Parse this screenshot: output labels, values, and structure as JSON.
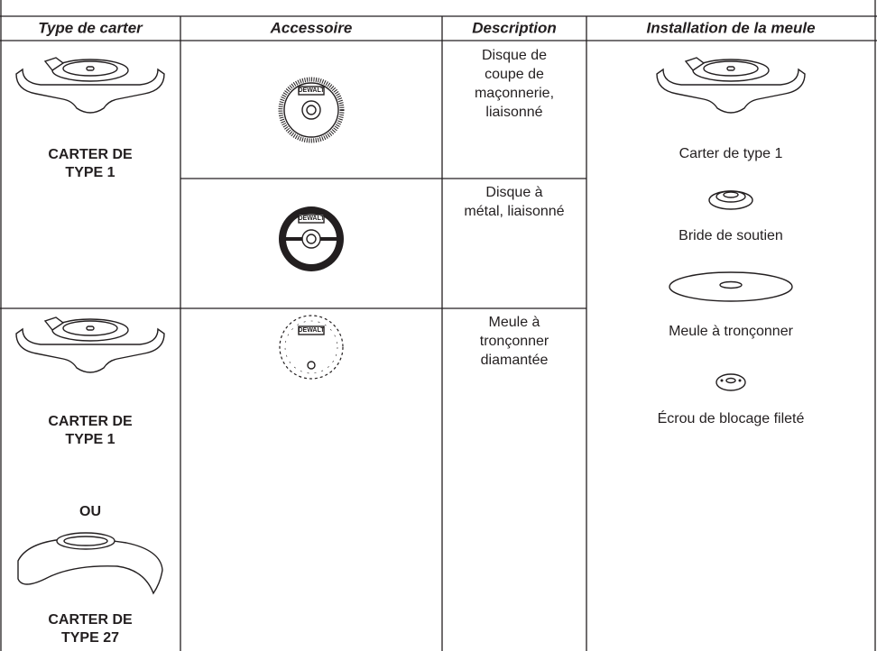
{
  "table": {
    "headers": [
      "Type de carter",
      "Accessoire",
      "Description",
      "Installation de la meule"
    ],
    "guards": [
      {
        "lines": [
          "CARTER DE",
          "TYPE 1"
        ]
      },
      {
        "lines": [
          "CARTER DE",
          "TYPE 1"
        ],
        "separator": "OU",
        "alt_lines": [
          "CARTER DE",
          "TYPE 27"
        ]
      }
    ],
    "brand": "DEWALT",
    "descriptions": [
      [
        "Disque de",
        "coupe de",
        "maçonnerie,",
        "liaisonné"
      ],
      [
        "Disque à",
        "métal, liaisonné"
      ],
      [
        "Meule à",
        "tronçonner",
        "diamantée"
      ]
    ],
    "installation": [
      "Carter de type 1",
      "Bride de soutien",
      "Meule à tronçonner",
      "Écrou de blocage fileté"
    ]
  }
}
